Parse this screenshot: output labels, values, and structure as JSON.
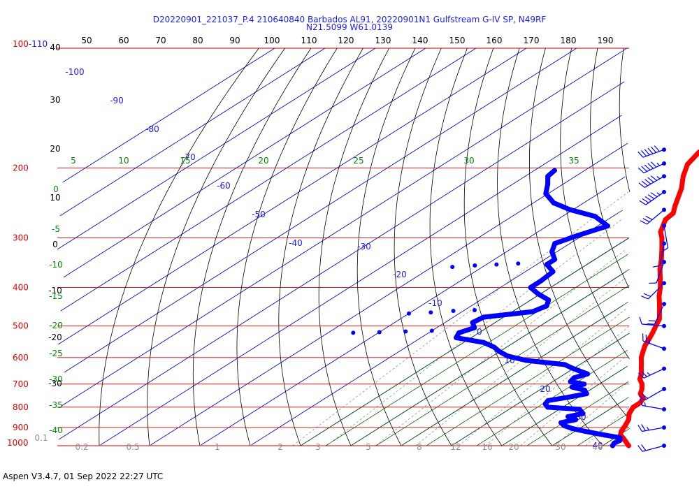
{
  "header": {
    "line1": "D20220901_221037_P.4 210640840 Barbados AL91, 20220901N1 Gulfstream G-IV SP, N49RF",
    "line2": "N21.5099 W61.0139"
  },
  "footer": {
    "text": "Aspen V3.4.7, 01 Sep 2022  22:27 UTC"
  },
  "colors": {
    "temperature": "#ff0000",
    "dewpoint": "#0000ff",
    "isobar": "#cc0000",
    "isotherm": "#0000cc",
    "dry_adiabat": "#000000",
    "moist_adiabat": "#006600",
    "mixing_ratio": "#808080",
    "wind_barb": "#0000ff"
  },
  "chart_data": {
    "type": "line",
    "subtype": "skew-T log-P",
    "pressure_axis": {
      "unit": "hPa",
      "scale": "log",
      "range": [
        1000,
        100
      ],
      "ticks": [
        "100-110",
        "200",
        "300",
        "400",
        "500",
        "600",
        "700",
        "800",
        "900",
        "1000"
      ]
    },
    "top_scale": [
      "50",
      "60",
      "70",
      "80",
      "90",
      "100",
      "110",
      "120",
      "130",
      "140",
      "150",
      "160",
      "170",
      "180",
      "190"
    ],
    "isotherm_labels": [
      "-100",
      "-90",
      "-80",
      "-70",
      "-60",
      "-50",
      "-40",
      "-30",
      "-20",
      "-10",
      "0",
      "10",
      "20",
      "30",
      "40"
    ],
    "moist_adiabat_labels": [
      "5",
      "10",
      "15",
      "20",
      "25",
      "30",
      "35"
    ],
    "dry_adiabat_labels": [
      "40",
      "30",
      "20",
      "10",
      "0",
      "-10",
      "-20",
      "-30"
    ],
    "moist_left_labels": [
      "0",
      "-5",
      "-10",
      "-15",
      "-20",
      "-25",
      "-30",
      "-35",
      "-40"
    ],
    "mixing_ratio_labels": [
      "0.1",
      "0.2",
      "0.5",
      "1",
      "2",
      "3",
      "5",
      "8",
      "12",
      "16",
      "20",
      "30",
      "40"
    ],
    "series": [
      {
        "id": "temperature",
        "points": [
          {
            "p": 1000,
            "t": 25.2
          },
          {
            "p": 985,
            "t": 24.0
          },
          {
            "p": 960,
            "t": 22.0
          },
          {
            "p": 940,
            "t": 20.2
          },
          {
            "p": 920,
            "t": 19.2
          },
          {
            "p": 890,
            "t": 18.2
          },
          {
            "p": 860,
            "t": 17.0
          },
          {
            "p": 830,
            "t": 15.2
          },
          {
            "p": 800,
            "t": 14.0
          },
          {
            "p": 780,
            "t": 14.0
          },
          {
            "p": 760,
            "t": 13.2
          },
          {
            "p": 740,
            "t": 11.2
          },
          {
            "p": 720,
            "t": 10.0
          },
          {
            "p": 700,
            "t": 8.5
          },
          {
            "p": 680,
            "t": 6.5
          },
          {
            "p": 660,
            "t": 5.2
          },
          {
            "p": 640,
            "t": 3.5
          },
          {
            "p": 620,
            "t": 1.8
          },
          {
            "p": 600,
            "t": 0.0
          },
          {
            "p": 580,
            "t": -1.5
          },
          {
            "p": 560,
            "t": -3.0
          },
          {
            "p": 540,
            "t": -4.2
          },
          {
            "p": 520,
            "t": -5.5
          },
          {
            "p": 500,
            "t": -7.0
          },
          {
            "p": 480,
            "t": -8.5
          },
          {
            "p": 460,
            "t": -10.8
          },
          {
            "p": 440,
            "t": -13.2
          },
          {
            "p": 420,
            "t": -15.8
          },
          {
            "p": 400,
            "t": -18.2
          },
          {
            "p": 380,
            "t": -21.0
          },
          {
            "p": 360,
            "t": -24.0
          },
          {
            "p": 340,
            "t": -26.8
          },
          {
            "p": 320,
            "t": -30.0
          },
          {
            "p": 300,
            "t": -33.5
          },
          {
            "p": 290,
            "t": -35.6
          },
          {
            "p": 270,
            "t": -38.5
          },
          {
            "p": 260,
            "t": -39.0
          },
          {
            "p": 250,
            "t": -40.8
          },
          {
            "p": 240,
            "t": -42.5
          },
          {
            "p": 225,
            "t": -45.2
          },
          {
            "p": 210,
            "t": -48.6
          },
          {
            "p": 196,
            "t": -51.5
          },
          {
            "p": 183,
            "t": -53.0
          },
          {
            "p": 176,
            "t": -53.2
          }
        ]
      },
      {
        "id": "dewpoint",
        "points": [
          {
            "p": 1000,
            "t": 22.0
          },
          {
            "p": 985,
            "t": 21.5
          },
          {
            "p": 970,
            "t": 21.8
          },
          {
            "p": 955,
            "t": 21.0
          },
          {
            "p": 940,
            "t": 17.0
          },
          {
            "p": 920,
            "t": 12.0
          },
          {
            "p": 905,
            "t": 8.5
          },
          {
            "p": 890,
            "t": 6.0
          },
          {
            "p": 875,
            "t": 4.5
          },
          {
            "p": 860,
            "t": 6.5
          },
          {
            "p": 845,
            "t": 4.0
          },
          {
            "p": 830,
            "t": 6.0
          },
          {
            "p": 810,
            "t": 4.0
          },
          {
            "p": 800,
            "t": -3.0
          },
          {
            "p": 785,
            "t": -4.5
          },
          {
            "p": 770,
            "t": -5.0
          },
          {
            "p": 755,
            "t": -2.0
          },
          {
            "p": 740,
            "t": 0.5
          },
          {
            "p": 725,
            "t": -1.0
          },
          {
            "p": 712,
            "t": -4.5
          },
          {
            "p": 700,
            "t": -3.0
          },
          {
            "p": 690,
            "t": -6.5
          },
          {
            "p": 675,
            "t": -7.0
          },
          {
            "p": 660,
            "t": -5.5
          },
          {
            "p": 640,
            "t": -10.0
          },
          {
            "p": 625,
            "t": -13.0
          },
          {
            "p": 610,
            "t": -22.0
          },
          {
            "p": 595,
            "t": -27.0
          },
          {
            "p": 580,
            "t": -30.0
          },
          {
            "p": 565,
            "t": -32.5
          },
          {
            "p": 550,
            "t": -36.0
          },
          {
            "p": 535,
            "t": -43.0
          },
          {
            "p": 520,
            "t": -44.0
          },
          {
            "p": 505,
            "t": -42.5
          },
          {
            "p": 490,
            "t": -44.5
          },
          {
            "p": 475,
            "t": -44.0
          },
          {
            "p": 460,
            "t": -36.0
          },
          {
            "p": 445,
            "t": -35.0
          },
          {
            "p": 430,
            "t": -36.5
          },
          {
            "p": 415,
            "t": -40.5
          },
          {
            "p": 400,
            "t": -44.0
          },
          {
            "p": 385,
            "t": -44.0
          },
          {
            "p": 365,
            "t": -44.5
          },
          {
            "p": 350,
            "t": -48.0
          },
          {
            "p": 340,
            "t": -48.0
          },
          {
            "p": 325,
            "t": -51.0
          },
          {
            "p": 310,
            "t": -53.0
          },
          {
            "p": 296,
            "t": -51.0
          },
          {
            "p": 280,
            "t": -48.0
          },
          {
            "p": 265,
            "t": -53.5
          },
          {
            "p": 255,
            "t": -60.5
          },
          {
            "p": 245,
            "t": -66.0
          },
          {
            "p": 232,
            "t": -70.5
          },
          {
            "p": 220,
            "t": -73.0
          },
          {
            "p": 210,
            "t": -75.5
          },
          {
            "p": 203,
            "t": -76.0
          }
        ]
      }
    ],
    "scatter_dewpoint": [
      {
        "p": 355,
        "t": -66
      },
      {
        "p": 352,
        "t": -62
      },
      {
        "p": 350,
        "t": -58
      },
      {
        "p": 348,
        "t": -54
      },
      {
        "p": 465,
        "t": -60
      },
      {
        "p": 462,
        "t": -56
      },
      {
        "p": 458,
        "t": -52
      },
      {
        "p": 456,
        "t": -48
      },
      {
        "p": 520,
        "t": -65
      },
      {
        "p": 518,
        "t": -60
      },
      {
        "p": 516,
        "t": -55
      },
      {
        "p": 514,
        "t": -50
      }
    ],
    "wind_barbs": [
      {
        "p": 180,
        "dir": 250,
        "kt": 60
      },
      {
        "p": 195,
        "dir": 245,
        "kt": 55
      },
      {
        "p": 210,
        "dir": 240,
        "kt": 55
      },
      {
        "p": 230,
        "dir": 235,
        "kt": 55
      },
      {
        "p": 255,
        "dir": 230,
        "kt": 30
      },
      {
        "p": 280,
        "dir": 170,
        "kt": 10
      },
      {
        "p": 310,
        "dir": 190,
        "kt": 10
      },
      {
        "p": 345,
        "dir": 200,
        "kt": 10
      },
      {
        "p": 390,
        "dir": 225,
        "kt": 20
      },
      {
        "p": 440,
        "dir": 205,
        "kt": 20
      },
      {
        "p": 500,
        "dir": 275,
        "kt": 10
      },
      {
        "p": 570,
        "dir": 290,
        "kt": 25
      },
      {
        "p": 640,
        "dir": 245,
        "kt": 25
      },
      {
        "p": 720,
        "dir": 240,
        "kt": 20
      },
      {
        "p": 810,
        "dir": 280,
        "kt": 15
      },
      {
        "p": 900,
        "dir": 260,
        "kt": 25
      },
      {
        "p": 1000,
        "dir": 255,
        "kt": 20
      }
    ]
  }
}
